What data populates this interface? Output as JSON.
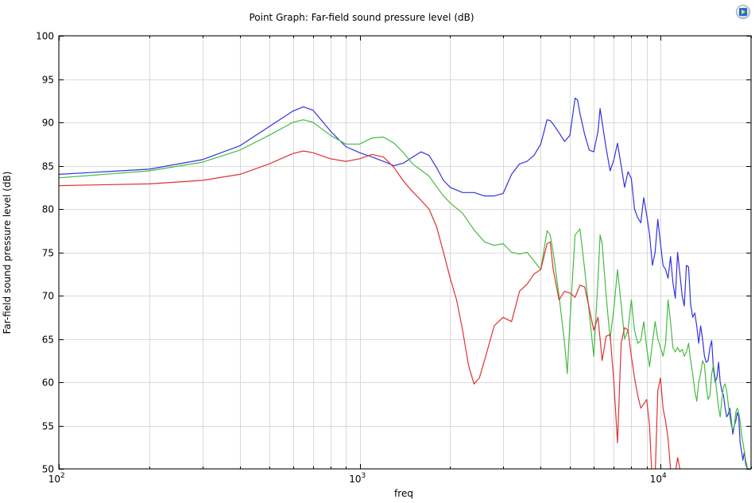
{
  "toolbar": {
    "export_icon": "image-export-icon"
  },
  "chart_data": {
    "type": "line",
    "title": "Point Graph: Far-field sound pressure level (dB)",
    "xlabel": "freq",
    "ylabel": "Far-field sound pressure level (dB)",
    "xscale": "log",
    "xlim": [
      100,
      20000
    ],
    "ylim": [
      50,
      100
    ],
    "grid": true,
    "ytick_labels": [
      "50",
      "55",
      "60",
      "65",
      "70",
      "75",
      "80",
      "85",
      "90",
      "95",
      "100"
    ],
    "xtick_labels": [
      {
        "base": "10",
        "exp": "2"
      },
      {
        "base": "10",
        "exp": "3"
      },
      {
        "base": "10",
        "exp": "4"
      }
    ],
    "series": [
      {
        "color": "#3333dd",
        "x": [
          100,
          200,
          300,
          400,
          500,
          600,
          650,
          700,
          800,
          900,
          1000,
          1100,
          1200,
          1300,
          1400,
          1500,
          1600,
          1700,
          1800,
          1900,
          2000,
          2200,
          2400,
          2600,
          2800,
          3000,
          3200,
          3400,
          3600,
          3800,
          4000,
          4200,
          4300,
          4400,
          4600,
          4800,
          5000,
          5200,
          5300,
          5400,
          5600,
          5800,
          6000,
          6200,
          6300,
          6400,
          6600,
          6800,
          7000,
          7200,
          7400,
          7600,
          7800,
          8000,
          8200,
          8400,
          8600,
          8800,
          9000,
          9200,
          9400,
          9600,
          9800,
          10000,
          10200,
          10400,
          10600,
          10800,
          11000,
          11200,
          11400,
          11600,
          11800,
          12000,
          12200,
          12400,
          12600,
          12800,
          13000,
          13200,
          13400,
          13600,
          13800,
          14000,
          14200,
          14400,
          14600,
          14800,
          15000,
          15200,
          15400,
          15600,
          15800,
          16000,
          16200,
          16400,
          16600,
          16800,
          17000,
          17200,
          17400,
          17600,
          17800,
          18000,
          18200,
          18400,
          18600,
          18800,
          19000,
          19200,
          19500,
          19800
        ],
        "y": [
          84.0,
          84.6,
          85.7,
          87.3,
          89.5,
          91.3,
          91.8,
          91.4,
          89.0,
          87.2,
          86.5,
          86.0,
          85.5,
          85.0,
          85.3,
          86.0,
          86.6,
          86.2,
          84.8,
          83.3,
          82.5,
          81.9,
          81.9,
          81.5,
          81.5,
          81.8,
          84.0,
          85.2,
          85.5,
          86.2,
          87.5,
          90.3,
          90.2,
          89.8,
          88.8,
          87.8,
          88.5,
          92.8,
          92.6,
          91.0,
          88.6,
          86.8,
          86.6,
          89.0,
          91.6,
          90.0,
          87.0,
          84.4,
          85.7,
          87.6,
          85.0,
          82.5,
          84.3,
          83.5,
          80.0,
          79.0,
          78.4,
          81.3,
          79.3,
          77.1,
          73.5,
          75.0,
          78.8,
          76.0,
          73.5,
          73.0,
          72.0,
          74.5,
          71.5,
          69.7,
          75.0,
          72.5,
          70.0,
          68.8,
          73.5,
          73.3,
          69.0,
          67.5,
          68.0,
          66.5,
          64.5,
          66.5,
          65.0,
          63.0,
          62.3,
          62.5,
          64.0,
          64.8,
          61.5,
          60.0,
          60.5,
          62.3,
          60.0,
          59.0,
          58.5,
          57.0,
          56.0,
          56.3,
          57.0,
          55.5,
          54.0,
          55.0,
          55.5,
          56.5,
          56.0,
          53.0,
          52.0,
          51.0,
          52.0,
          50.5,
          50.0,
          48.0
        ]
      },
      {
        "color": "#44bb44",
        "x": [
          100,
          200,
          300,
          400,
          500,
          600,
          650,
          700,
          800,
          900,
          1000,
          1100,
          1200,
          1300,
          1400,
          1500,
          1600,
          1700,
          1800,
          1900,
          2000,
          2200,
          2400,
          2600,
          2800,
          3000,
          3200,
          3400,
          3600,
          3800,
          4000,
          4200,
          4300,
          4400,
          4600,
          4800,
          4900,
          5000,
          5200,
          5400,
          5600,
          5800,
          6000,
          6200,
          6300,
          6400,
          6600,
          6800,
          7000,
          7200,
          7400,
          7600,
          7800,
          8000,
          8200,
          8400,
          8600,
          8800,
          9000,
          9200,
          9400,
          9600,
          9800,
          10000,
          10200,
          10400,
          10600,
          10800,
          11000,
          11200,
          11400,
          11600,
          11800,
          12000,
          12200,
          12400,
          12600,
          12800,
          13000,
          13200,
          13400,
          13600,
          13800,
          14000,
          14200,
          14400,
          14600,
          14800,
          15000,
          15200,
          15400,
          15600,
          15800,
          16000,
          16200,
          16400,
          16600,
          16800,
          17000,
          17200,
          17400,
          17600,
          17800,
          18000,
          18200,
          18400,
          18600,
          18800,
          19000,
          19200,
          19500,
          19800
        ],
        "y": [
          83.6,
          84.4,
          85.4,
          86.8,
          88.5,
          90.0,
          90.3,
          90.0,
          88.5,
          87.5,
          87.5,
          88.2,
          88.3,
          87.6,
          86.5,
          85.2,
          84.5,
          83.8,
          82.6,
          81.5,
          80.7,
          79.5,
          77.6,
          76.2,
          75.8,
          76.0,
          75.0,
          74.8,
          75.0,
          74.0,
          73.0,
          77.5,
          77.0,
          75.0,
          70.0,
          64.5,
          61.0,
          67.0,
          77.0,
          77.7,
          73.0,
          68.0,
          63.0,
          72.0,
          77.0,
          76.0,
          70.0,
          65.0,
          68.5,
          73.0,
          69.0,
          65.0,
          66.0,
          69.5,
          66.0,
          64.5,
          64.8,
          67.0,
          64.0,
          61.8,
          64.5,
          67.0,
          65.0,
          64.0,
          63.0,
          64.5,
          69.5,
          67.0,
          64.0,
          63.5,
          64.0,
          63.5,
          63.8,
          63.0,
          63.5,
          64.5,
          62.5,
          61.0,
          59.0,
          57.8,
          60.0,
          61.0,
          62.5,
          62.0,
          59.5,
          58.0,
          58.5,
          61.0,
          62.0,
          60.5,
          58.8,
          57.0,
          56.0,
          58.0,
          59.5,
          59.8,
          59.0,
          57.5,
          56.0,
          55.0,
          54.5,
          55.0,
          56.5,
          57.0,
          56.5,
          55.5,
          54.0,
          53.0,
          52.0,
          51.0,
          50.0,
          49.0
        ]
      },
      {
        "color": "#dd3333",
        "x": [
          100,
          200,
          300,
          400,
          500,
          600,
          650,
          700,
          800,
          900,
          1000,
          1100,
          1200,
          1300,
          1400,
          1500,
          1600,
          1700,
          1800,
          1900,
          2000,
          2100,
          2200,
          2300,
          2400,
          2500,
          2600,
          2800,
          3000,
          3200,
          3400,
          3600,
          3800,
          4000,
          4200,
          4300,
          4400,
          4600,
          4800,
          5000,
          5200,
          5400,
          5600,
          5800,
          6000,
          6200,
          6400,
          6600,
          6800,
          7000,
          7200,
          7400,
          7600,
          7800,
          8000,
          8200,
          8400,
          8600,
          8800,
          9000,
          9200,
          9400,
          9600,
          9800,
          10000,
          10200,
          10400,
          10600,
          10800,
          11000,
          11200,
          11400,
          11600,
          11800
        ],
        "y": [
          82.7,
          82.9,
          83.3,
          84.0,
          85.2,
          86.4,
          86.7,
          86.5,
          85.8,
          85.5,
          85.8,
          86.3,
          86.0,
          84.8,
          83.2,
          82.0,
          81.0,
          80.0,
          78.0,
          75.0,
          72.0,
          69.5,
          66.0,
          62.0,
          59.8,
          60.5,
          62.5,
          66.5,
          67.5,
          67.0,
          70.5,
          71.3,
          72.5,
          73.0,
          76.0,
          76.2,
          73.0,
          69.5,
          70.5,
          70.3,
          69.8,
          71.2,
          71.0,
          68.5,
          66.0,
          67.5,
          62.5,
          65.3,
          65.5,
          60.0,
          53.0,
          64.5,
          66.3,
          66.0,
          63.0,
          60.5,
          58.5,
          57.0,
          57.5,
          58.0,
          55.0,
          48.0,
          49.0,
          59.0,
          60.5,
          57.0,
          55.5,
          53.5,
          50.0,
          46.0,
          49.5,
          51.3,
          50.0,
          46.0
        ]
      }
    ]
  }
}
